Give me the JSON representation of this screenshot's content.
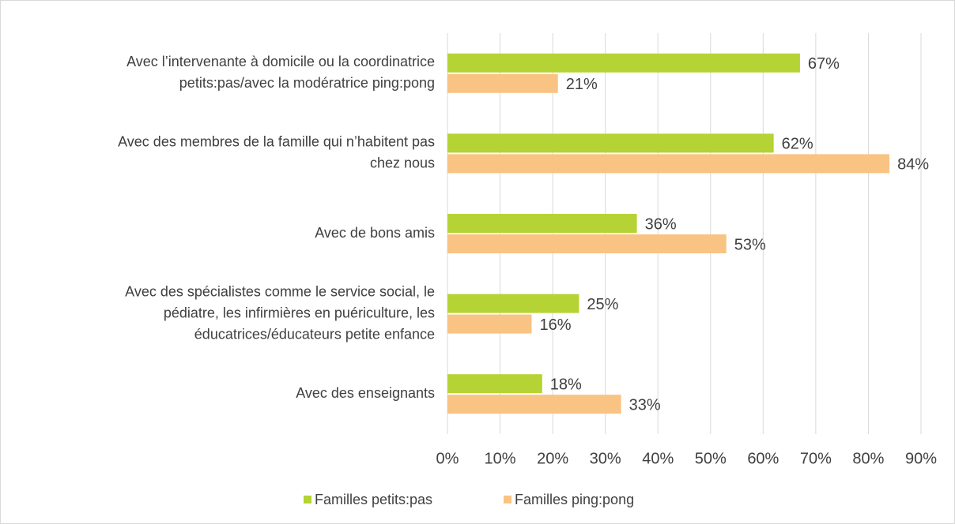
{
  "chart_data": {
    "type": "hbar",
    "categories": [
      [
        "Avec l’intervenante à domicile ou la coordinatrice",
        "petits:pas/avec la modératrice ping:pong"
      ],
      [
        "Avec des membres de la famille qui n’habitent pas",
        "chez nous"
      ],
      [
        "Avec de bons amis"
      ],
      [
        "Avec des spécialistes comme le service social, le",
        "pédiatre, les infirmières en puériculture, les",
        "éducatrices/éducateurs petite enfance"
      ],
      [
        "Avec des enseignants"
      ]
    ],
    "series": [
      {
        "name": "Familles petits:pas",
        "color": "#b5d334",
        "values": [
          67,
          62,
          36,
          25,
          18
        ],
        "value_labels": [
          "67%",
          "62%",
          "36%",
          "25%",
          "18%"
        ]
      },
      {
        "name": "Familles ping:pong",
        "color": "#f9c383",
        "values": [
          21,
          84,
          53,
          16,
          33
        ],
        "value_labels": [
          "21%",
          "84%",
          "53%",
          "16%",
          "33%"
        ]
      }
    ],
    "xlim": [
      0,
      90
    ],
    "xticks": [
      {
        "value": 0,
        "label": "0%"
      },
      {
        "value": 10,
        "label": "10%"
      },
      {
        "value": 20,
        "label": "20%"
      },
      {
        "value": 30,
        "label": "30%"
      },
      {
        "value": 40,
        "label": "40%"
      },
      {
        "value": 50,
        "label": "50%"
      },
      {
        "value": 60,
        "label": "60%"
      },
      {
        "value": 70,
        "label": "70%"
      },
      {
        "value": 80,
        "label": "80%"
      },
      {
        "value": 90,
        "label": "90%"
      }
    ],
    "grid": true,
    "legend": "bottom"
  }
}
